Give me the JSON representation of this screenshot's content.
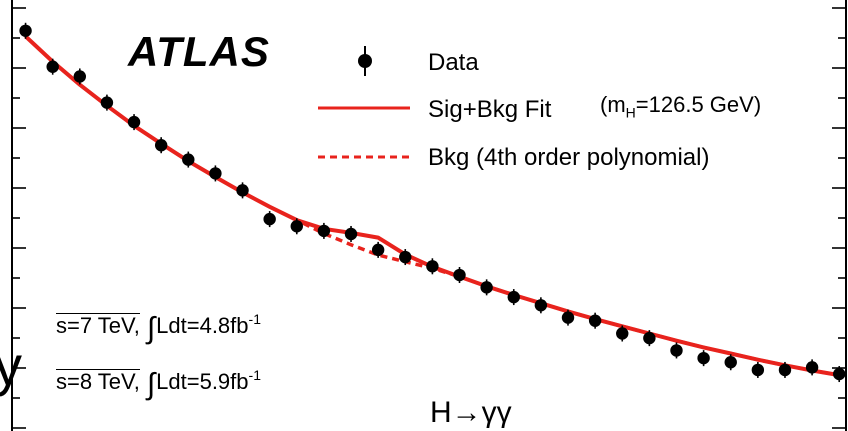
{
  "chart_data": {
    "type": "scatter",
    "experiment_label": "ATLAS",
    "process_label": "H→γγ",
    "luminosity_labels": [
      {
        "energy": "s=7 TeV,",
        "int_symbol": "∫",
        "lumi": "Ldt=4.8fb",
        "exponent": "-1"
      },
      {
        "energy": "s=8 TeV,",
        "int_symbol": "∫",
        "lumi": "Ldt=5.9fb",
        "exponent": "-1"
      }
    ],
    "legend": {
      "placement": "top-right",
      "entries": [
        {
          "label": "Data",
          "marker": "point-with-error-bar",
          "color": "#000000"
        },
        {
          "label": "Sig+Bkg Fit",
          "annotation_prefix": "(m",
          "annotation_sub": "H",
          "annotation_suffix": "=126.5 GeV)",
          "line_style": "solid",
          "color": "#e8231d"
        },
        {
          "label": "Bkg (4th order polynomial)",
          "line_style": "dashed",
          "color": "#e8231d"
        }
      ]
    },
    "x": [
      100,
      102,
      104,
      106,
      108,
      110,
      112,
      114,
      116,
      118,
      120,
      122,
      124,
      126,
      128,
      130,
      132,
      134,
      136,
      138,
      140,
      142,
      144,
      146,
      148,
      150,
      152,
      154,
      156,
      158,
      160
    ],
    "series": [
      {
        "name": "Data",
        "values": [
          100,
          93.0,
          91.1,
          86.0,
          82.2,
          77.7,
          74.9,
          72.2,
          68.9,
          63.3,
          61.9,
          61.0,
          60.4,
          57.3,
          55.9,
          54.1,
          52.4,
          50.0,
          48.1,
          46.5,
          44.1,
          43.5,
          41.0,
          40.1,
          37.7,
          36.2,
          35.4,
          33.9,
          33.9,
          34.4,
          33.1
        ]
      },
      {
        "name": "Sig+Bkg Fit",
        "values": [
          98.9,
          94.0,
          89.5,
          85.4,
          81.5,
          78.0,
          74.6,
          71.5,
          68.5,
          65.7,
          63.1,
          61.4,
          60.6,
          59.7,
          56.4,
          54.0,
          52.1,
          50.2,
          48.5,
          46.9,
          45.3,
          43.8,
          42.4,
          41.0,
          39.6,
          38.3,
          37.1,
          35.9,
          34.8,
          33.8,
          32.9
        ]
      },
      {
        "name": "Bkg (4th order polynomial)",
        "values": [
          98.9,
          94.0,
          89.5,
          85.4,
          81.5,
          78.0,
          74.6,
          71.5,
          68.5,
          65.7,
          63.1,
          60.5,
          58.3,
          56.3,
          55.0,
          53.7,
          52.1,
          50.2,
          48.5,
          46.9,
          45.3,
          43.8,
          42.4,
          41.0,
          39.6,
          38.3,
          37.1,
          35.9,
          34.8,
          33.8,
          32.9
        ]
      }
    ],
    "xlim": [
      99,
      160.5
    ],
    "ylim": [
      22,
      106
    ],
    "grid": false,
    "colors": {
      "data": "#000000",
      "fit": "#e8231d",
      "frame": "#000000"
    }
  },
  "edge_fragment": "y"
}
